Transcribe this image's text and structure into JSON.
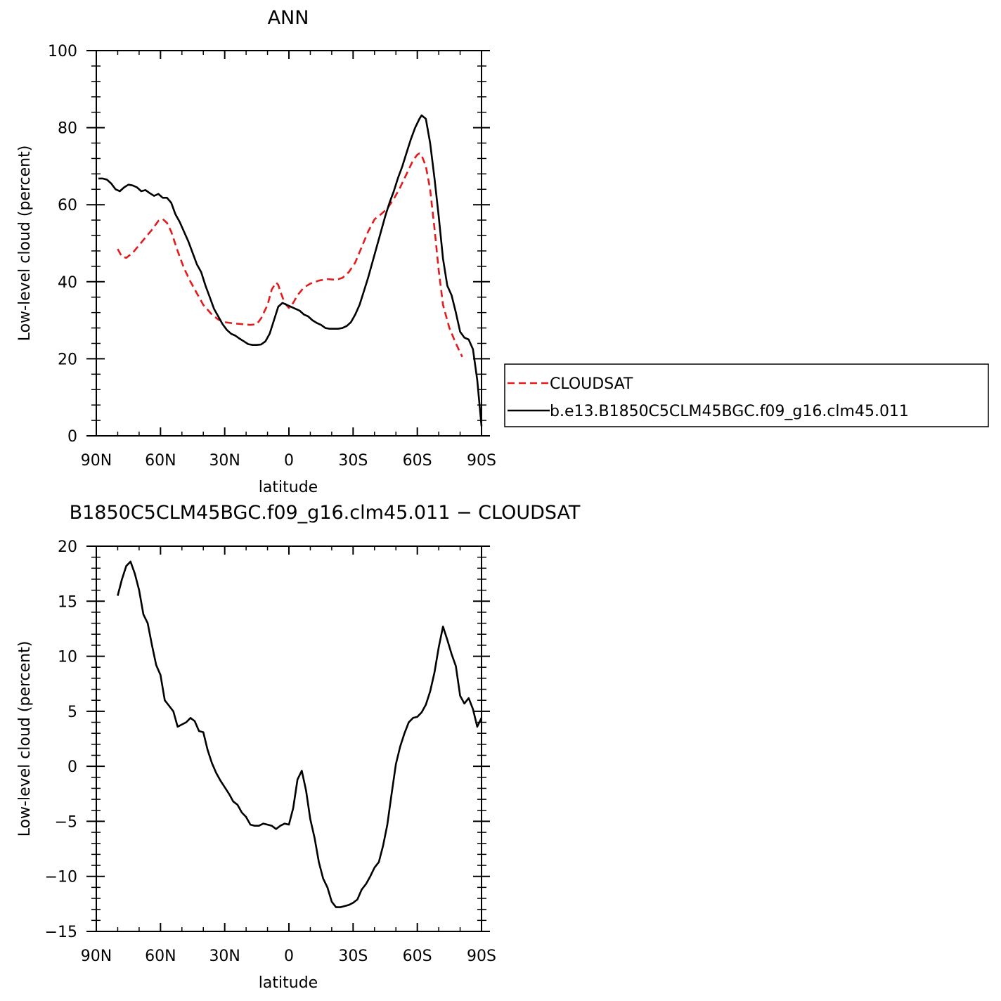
{
  "chart_data": [
    {
      "type": "line",
      "title": "ANN",
      "xlabel": "latitude",
      "ylabel": "Low-level cloud (percent)",
      "xlim": [
        90,
        -90
      ],
      "ylim": [
        0,
        100
      ],
      "x_ticks": [
        {
          "value": 90,
          "label": "90N"
        },
        {
          "value": 60,
          "label": "60N"
        },
        {
          "value": 30,
          "label": "30N"
        },
        {
          "value": 0,
          "label": "0"
        },
        {
          "value": -30,
          "label": "30S"
        },
        {
          "value": -60,
          "label": "60S"
        },
        {
          "value": -90,
          "label": "90S"
        }
      ],
      "y_ticks": [
        {
          "value": 0,
          "label": "0"
        },
        {
          "value": 20,
          "label": "20"
        },
        {
          "value": 40,
          "label": "40"
        },
        {
          "value": 60,
          "label": "60"
        },
        {
          "value": 80,
          "label": "80"
        },
        {
          "value": 100,
          "label": "100"
        }
      ],
      "legend": "right",
      "series": [
        {
          "name": "CLOUDSAT",
          "color": "#e41a1c",
          "dash": "dashed",
          "points": [
            [
              80,
              48.5
            ],
            [
              78,
              46.5
            ],
            [
              76,
              46.2
            ],
            [
              73,
              47.5
            ],
            [
              70,
              49.5
            ],
            [
              67,
              51.5
            ],
            [
              64,
              53.5
            ],
            [
              61,
              55.8
            ],
            [
              59,
              56.3
            ],
            [
              57,
              55.3
            ],
            [
              55,
              53
            ],
            [
              52,
              48
            ],
            [
              49,
              43.5
            ],
            [
              46,
              40
            ],
            [
              43,
              37
            ],
            [
              40,
              34
            ],
            [
              36,
              31.5
            ],
            [
              33,
              30.2
            ],
            [
              30,
              29.5
            ],
            [
              26,
              29.2
            ],
            [
              22,
              29
            ],
            [
              18,
              28.8
            ],
            [
              15,
              29
            ],
            [
              13,
              30.5
            ],
            [
              10,
              34
            ],
            [
              8,
              38
            ],
            [
              6,
              39.8
            ],
            [
              5,
              39.2
            ],
            [
              4,
              37.5
            ],
            [
              2,
              34.5
            ],
            [
              0,
              33.2
            ],
            [
              -2,
              34.5
            ],
            [
              -4,
              36.5
            ],
            [
              -7,
              38.5
            ],
            [
              -10,
              39.5
            ],
            [
              -14,
              40.3
            ],
            [
              -18,
              40.7
            ],
            [
              -22,
              40.5
            ],
            [
              -25,
              41
            ],
            [
              -28,
              42.5
            ],
            [
              -31,
              45
            ],
            [
              -34,
              49
            ],
            [
              -37,
              53
            ],
            [
              -40,
              56.2
            ],
            [
              -43,
              57.5
            ],
            [
              -46,
              59
            ],
            [
              -49,
              61.5
            ],
            [
              -52,
              64.5
            ],
            [
              -55,
              68
            ],
            [
              -58,
              71.5
            ],
            [
              -60,
              73
            ],
            [
              -61,
              73.3
            ],
            [
              -62,
              72.8
            ],
            [
              -64,
              70
            ],
            [
              -66,
              64
            ],
            [
              -68,
              54
            ],
            [
              -70,
              43
            ],
            [
              -72,
              34
            ],
            [
              -75,
              28
            ],
            [
              -78,
              24
            ],
            [
              -81,
              20.5
            ]
          ]
        },
        {
          "name": "b.e13.B1850C5CLM45BGC.f09_g16.clm45.011",
          "color": "#000000",
          "dash": "solid",
          "points": [
            [
              89,
              66.8
            ],
            [
              87,
              66.8
            ],
            [
              85,
              66.5
            ],
            [
              83,
              65.5
            ],
            [
              81,
              64
            ],
            [
              79,
              63.5
            ],
            [
              77,
              64.5
            ],
            [
              75,
              65.2
            ],
            [
              73,
              65
            ],
            [
              71,
              64.5
            ],
            [
              69,
              63.5
            ],
            [
              67,
              63.8
            ],
            [
              65,
              63
            ],
            [
              63,
              62.3
            ],
            [
              61,
              62.8
            ],
            [
              59,
              61.8
            ],
            [
              57,
              61.8
            ],
            [
              55,
              60.5
            ],
            [
              53,
              57.5
            ],
            [
              51,
              55.5
            ],
            [
              49,
              53
            ],
            [
              47,
              50.5
            ],
            [
              45,
              47.5
            ],
            [
              43,
              44.5
            ],
            [
              41,
              42.5
            ],
            [
              39,
              39
            ],
            [
              37,
              36
            ],
            [
              35,
              33
            ],
            [
              33,
              31
            ],
            [
              31,
              29
            ],
            [
              29,
              27.5
            ],
            [
              27,
              26.5
            ],
            [
              25,
              26
            ],
            [
              23,
              25.2
            ],
            [
              21,
              24.5
            ],
            [
              19,
              23.8
            ],
            [
              17,
              23.6
            ],
            [
              15,
              23.6
            ],
            [
              13,
              23.7
            ],
            [
              11,
              24.5
            ],
            [
              9,
              26.5
            ],
            [
              7,
              30
            ],
            [
              5,
              33.5
            ],
            [
              3,
              34.5
            ],
            [
              1,
              34
            ],
            [
              -1,
              33.5
            ],
            [
              -3,
              33
            ],
            [
              -5,
              32.5
            ],
            [
              -7,
              31.5
            ],
            [
              -9,
              31
            ],
            [
              -11,
              30
            ],
            [
              -13,
              29.3
            ],
            [
              -15,
              28.8
            ],
            [
              -17,
              28
            ],
            [
              -19,
              27.8
            ],
            [
              -21,
              27.8
            ],
            [
              -23,
              27.8
            ],
            [
              -25,
              28
            ],
            [
              -27,
              28.5
            ],
            [
              -29,
              29.5
            ],
            [
              -31,
              31.5
            ],
            [
              -33,
              34
            ],
            [
              -35,
              37.5
            ],
            [
              -37,
              41
            ],
            [
              -39,
              45
            ],
            [
              -41,
              49
            ],
            [
              -43,
              53
            ],
            [
              -45,
              57
            ],
            [
              -47,
              60.5
            ],
            [
              -49,
              63.5
            ],
            [
              -51,
              67
            ],
            [
              -53,
              70
            ],
            [
              -55,
              73.5
            ],
            [
              -57,
              77
            ],
            [
              -59,
              80
            ],
            [
              -61,
              82.3
            ],
            [
              -62,
              83.2
            ],
            [
              -64,
              82.3
            ],
            [
              -66,
              76
            ],
            [
              -68,
              67
            ],
            [
              -70,
              57
            ],
            [
              -72,
              46
            ],
            [
              -74,
              39
            ],
            [
              -76,
              36.5
            ],
            [
              -78,
              32
            ],
            [
              -80,
              27
            ],
            [
              -82,
              25.5
            ],
            [
              -84,
              25
            ],
            [
              -86,
              22.5
            ],
            [
              -88,
              14.5
            ],
            [
              -90,
              2.5
            ]
          ]
        }
      ]
    },
    {
      "type": "line",
      "title": "B1850C5CLM45BGC.f09_g16.clm45.011 − CLOUDSAT",
      "xlabel": "latitude",
      "ylabel": "Low-level cloud (percent)",
      "xlim": [
        90,
        -90
      ],
      "ylim": [
        -15,
        20
      ],
      "x_ticks": [
        {
          "value": 90,
          "label": "90N"
        },
        {
          "value": 60,
          "label": "60N"
        },
        {
          "value": 30,
          "label": "30N"
        },
        {
          "value": 0,
          "label": "0"
        },
        {
          "value": -30,
          "label": "30S"
        },
        {
          "value": -60,
          "label": "60S"
        },
        {
          "value": -90,
          "label": "90S"
        }
      ],
      "y_ticks": [
        {
          "value": -15,
          "label": "−15"
        },
        {
          "value": -10,
          "label": "−10"
        },
        {
          "value": -5,
          "label": "−5"
        },
        {
          "value": 0,
          "label": "0"
        },
        {
          "value": 5,
          "label": "5"
        },
        {
          "value": 10,
          "label": "10"
        },
        {
          "value": 15,
          "label": "15"
        },
        {
          "value": 20,
          "label": "20"
        }
      ],
      "series": [
        {
          "color": "#000000",
          "dash": "solid",
          "points": [
            [
              80,
              15.5
            ],
            [
              78,
              17
            ],
            [
              76,
              18.2
            ],
            [
              74,
              18.6
            ],
            [
              72,
              17.5
            ],
            [
              70,
              16
            ],
            [
              68,
              13.8
            ],
            [
              66,
              13
            ],
            [
              64,
              11
            ],
            [
              62,
              9.2
            ],
            [
              60,
              8.3
            ],
            [
              58,
              6
            ],
            [
              56,
              5.5
            ],
            [
              54,
              5
            ],
            [
              52,
              3.6
            ],
            [
              50,
              3.8
            ],
            [
              48,
              4
            ],
            [
              46,
              4.4
            ],
            [
              44,
              4.1
            ],
            [
              42,
              3.2
            ],
            [
              40,
              3.1
            ],
            [
              38,
              1.5
            ],
            [
              36,
              0.3
            ],
            [
              34,
              -0.6
            ],
            [
              32,
              -1.3
            ],
            [
              30,
              -1.9
            ],
            [
              28,
              -2.5
            ],
            [
              26,
              -3.2
            ],
            [
              24,
              -3.5
            ],
            [
              22,
              -4.2
            ],
            [
              20,
              -4.6
            ],
            [
              18,
              -5.3
            ],
            [
              16,
              -5.4
            ],
            [
              14,
              -5.4
            ],
            [
              12,
              -5.2
            ],
            [
              10,
              -5.3
            ],
            [
              8,
              -5.4
            ],
            [
              6,
              -5.7
            ],
            [
              4,
              -5.4
            ],
            [
              2,
              -5.2
            ],
            [
              0,
              -5.3
            ],
            [
              -2,
              -3.8
            ],
            [
              -4,
              -1.2
            ],
            [
              -6,
              -0.4
            ],
            [
              -8,
              -2.2
            ],
            [
              -10,
              -4.8
            ],
            [
              -12,
              -6.5
            ],
            [
              -14,
              -8.7
            ],
            [
              -16,
              -10.2
            ],
            [
              -18,
              -11
            ],
            [
              -20,
              -12.3
            ],
            [
              -22,
              -12.8
            ],
            [
              -24,
              -12.8
            ],
            [
              -26,
              -12.7
            ],
            [
              -28,
              -12.6
            ],
            [
              -30,
              -12.4
            ],
            [
              -32,
              -12.1
            ],
            [
              -34,
              -11.2
            ],
            [
              -36,
              -10.7
            ],
            [
              -38,
              -10
            ],
            [
              -40,
              -9.2
            ],
            [
              -42,
              -8.7
            ],
            [
              -44,
              -7.2
            ],
            [
              -46,
              -5.3
            ],
            [
              -48,
              -2.5
            ],
            [
              -50,
              0.2
            ],
            [
              -52,
              1.8
            ],
            [
              -54,
              3
            ],
            [
              -56,
              4
            ],
            [
              -58,
              4.4
            ],
            [
              -60,
              4.5
            ],
            [
              -62,
              4.9
            ],
            [
              -64,
              5.6
            ],
            [
              -66,
              6.8
            ],
            [
              -68,
              8.5
            ],
            [
              -70,
              10.8
            ],
            [
              -72,
              12.7
            ],
            [
              -74,
              11.5
            ],
            [
              -76,
              10.2
            ],
            [
              -78,
              9.1
            ],
            [
              -80,
              6.4
            ],
            [
              -82,
              5.7
            ],
            [
              -84,
              6.2
            ],
            [
              -86,
              5.2
            ],
            [
              -88,
              3.6
            ],
            [
              -90,
              4.4
            ]
          ]
        }
      ]
    }
  ]
}
